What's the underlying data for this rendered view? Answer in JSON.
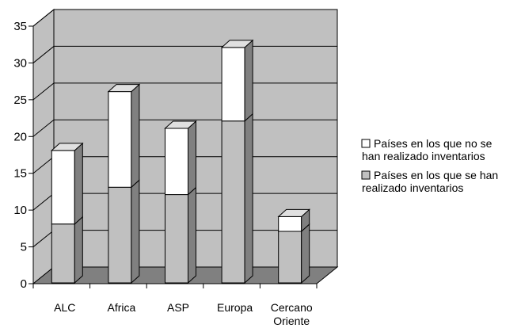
{
  "chart_data": {
    "type": "bar",
    "stacked": true,
    "three_d": true,
    "categories": [
      "ALC",
      "Africa",
      "ASP",
      "Europa",
      [
        "Cercano",
        "Oriente"
      ]
    ],
    "series": [
      {
        "name": [
          "Países en los que se han",
          "realizado inventarios"
        ],
        "values": [
          8,
          13,
          12,
          22,
          7
        ],
        "color": "#c0c0c0"
      },
      {
        "name": [
          "Países en los que no se",
          "han realizado inventarios"
        ],
        "values": [
          10,
          13,
          9,
          10,
          2
        ],
        "color": "#ffffff"
      }
    ],
    "ylim": [
      0,
      35
    ],
    "yticks": [
      "0",
      "5",
      "10",
      "15",
      "20",
      "25",
      "30",
      "35"
    ],
    "grid": true,
    "legend_position": "right",
    "colors": {
      "wall": "#c0c0c0",
      "floor": "#808080",
      "bar_side": "#808080",
      "bar_top": "#e0e0e0"
    }
  }
}
